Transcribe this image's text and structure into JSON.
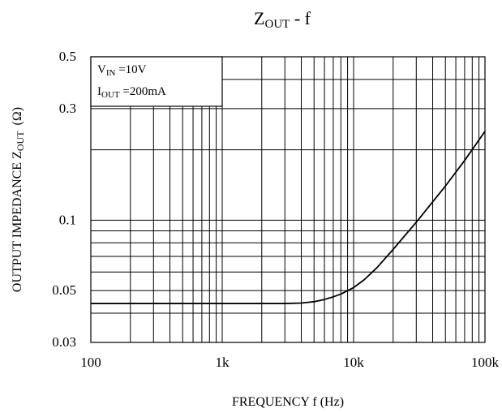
{
  "chart_data": {
    "type": "line",
    "title": "Z",
    "title_sub": "OUT",
    "title_suffix": " -  f",
    "xlabel": "FREQUENCY  f  (Hz)",
    "ylabel": "OUTPUT IMPEDANCE Z",
    "ylabel_sub": "OUT",
    "ylabel_unit": "(Ω)",
    "x_scale": "log",
    "y_scale": "log",
    "xlim": [
      100,
      100000
    ],
    "ylim": [
      0.03,
      0.5
    ],
    "x_ticks": [
      {
        "value": 100,
        "label": "100"
      },
      {
        "value": 1000,
        "label": "1k"
      },
      {
        "value": 10000,
        "label": "10k"
      },
      {
        "value": 100000,
        "label": "100k"
      }
    ],
    "y_ticks": [
      {
        "value": 0.5,
        "label": "0.5"
      },
      {
        "value": 0.3,
        "label": "0.3"
      },
      {
        "value": 0.1,
        "label": "0.1"
      },
      {
        "value": 0.05,
        "label": "0.05"
      },
      {
        "value": 0.03,
        "label": "0.03"
      }
    ],
    "grid": true,
    "legend": {
      "placement": "top-left",
      "lines": [
        {
          "main": "V",
          "sub": "IN",
          "rest": " =10V"
        },
        {
          "main": "I",
          "sub": "OUT",
          "rest": " =200mA"
        }
      ]
    },
    "series": [
      {
        "color": "#000000",
        "x": [
          100,
          1000,
          3000,
          4000,
          5000,
          6000,
          7000,
          8000,
          10000,
          12000,
          15000,
          20000,
          30000,
          50000,
          70000,
          100000
        ],
        "y": [
          0.044,
          0.044,
          0.044,
          0.0442,
          0.0448,
          0.0458,
          0.047,
          0.0483,
          0.0515,
          0.0555,
          0.0625,
          0.075,
          0.098,
          0.14,
          0.18,
          0.24
        ]
      }
    ]
  }
}
